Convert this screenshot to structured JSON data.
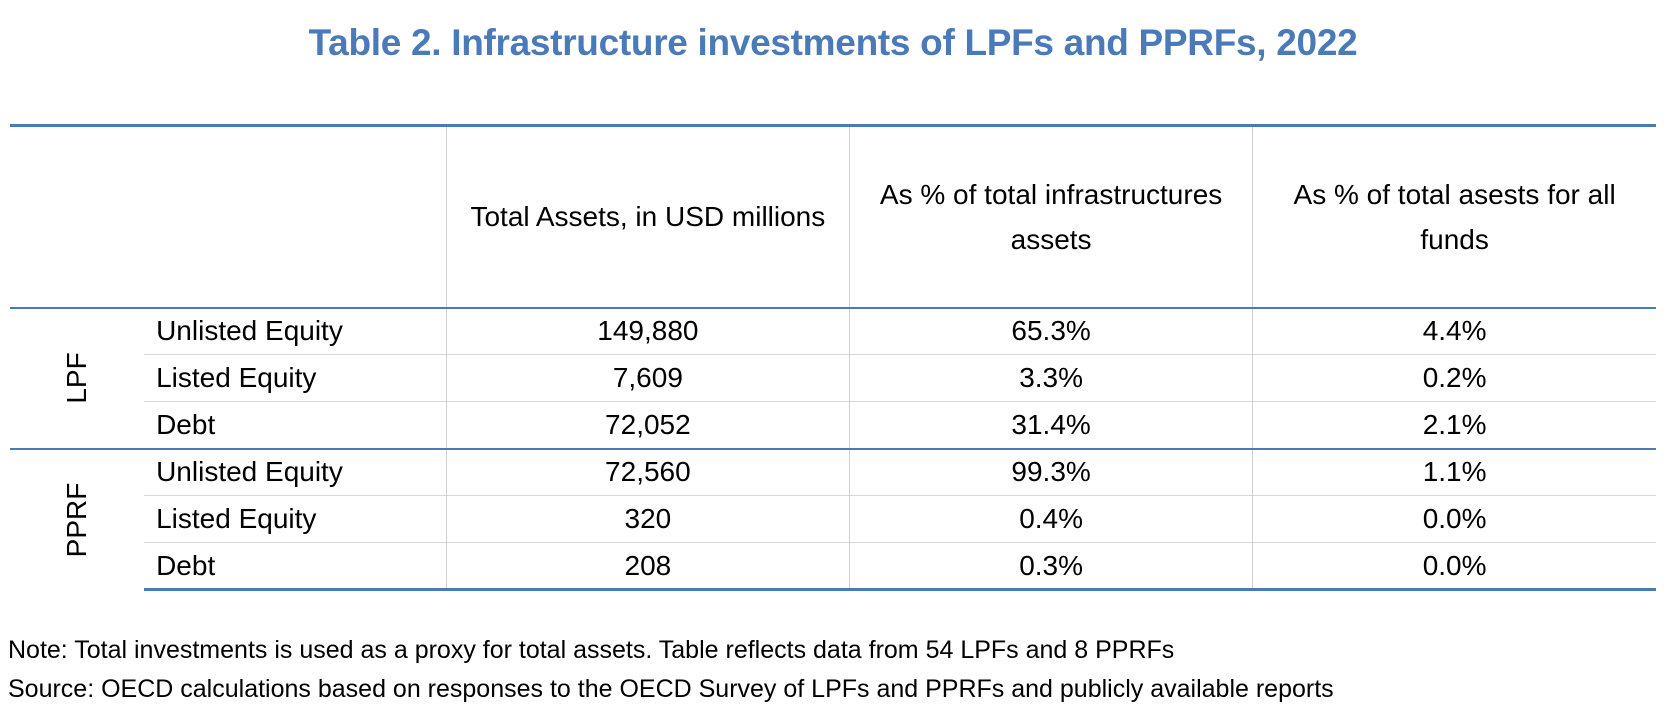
{
  "chart_data": {
    "type": "table",
    "title": "Table 2. Infrastructure investments of LPFs and PPRFs, 2022",
    "columns": [
      "Total Assets, in USD millions",
      "As %  of total infrastructures assets",
      "As %  of total asests for all funds"
    ],
    "groups": [
      {
        "name": "LPF",
        "rows": [
          {
            "label": "Unlisted Equity",
            "values": [
              "149,880",
              "65.3%",
              "4.4%"
            ]
          },
          {
            "label": "Listed Equity",
            "values": [
              "7,609",
              "3.3%",
              "0.2%"
            ]
          },
          {
            "label": "Debt",
            "values": [
              "72,052",
              "31.4%",
              "2.1%"
            ]
          }
        ]
      },
      {
        "name": "PPRF",
        "rows": [
          {
            "label": "Unlisted Equity",
            "values": [
              "72,560",
              "99.3%",
              "1.1%"
            ]
          },
          {
            "label": "Listed Equity",
            "values": [
              "320",
              "0.4%",
              "0.0%"
            ]
          },
          {
            "label": "Debt",
            "values": [
              "208",
              "0.3%",
              "0.0%"
            ]
          }
        ]
      }
    ],
    "note": "Note: Total investments is used as a proxy for total assets. Table reflects data from 54 LPFs and 8 PPRFs",
    "source": "Source: OECD calculations based on responses to the OECD Survey of LPFs and PPRFs and publicly available reports"
  },
  "colors": {
    "accent": "#4a7ab8",
    "rule": "#d0d0d0",
    "text": "#000000"
  }
}
